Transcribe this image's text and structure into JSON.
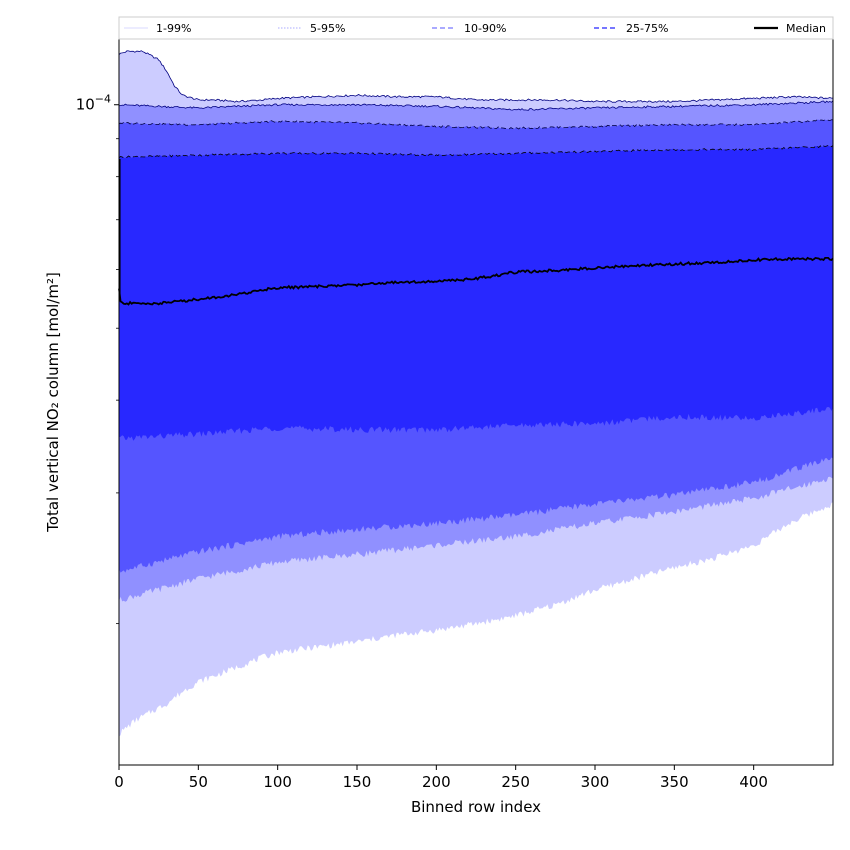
{
  "chart_data": {
    "type": "area",
    "xlabel": "Binned row index",
    "ylabel": "Total vertical NO₂ column [mol/m²]",
    "xlim": [
      0,
      450
    ],
    "xticks": [
      0,
      50,
      100,
      150,
      200,
      250,
      300,
      350,
      400
    ],
    "yscale": "log",
    "ylim": [
      1.29e-05,
      0.000123
    ],
    "ytick_label": "10−4",
    "ytick_value": 0.0001,
    "legend_position": "top, above plot, single row",
    "legend": [
      "1-99%",
      "5-95%",
      "10-90%",
      "25-75%",
      "Median"
    ],
    "bands": [
      {
        "name": "1-99%",
        "color": "#ccccff",
        "line_color": "#000080",
        "x": [
          0,
          5,
          10,
          15,
          20,
          25,
          30,
          35,
          40,
          50,
          60,
          75,
          90,
          100,
          125,
          150,
          175,
          200,
          225,
          250,
          275,
          300,
          325,
          350,
          375,
          400,
          425,
          450
        ],
        "upper": [
          0.000117,
          0.000118,
          0.000118,
          0.000118,
          0.0001165,
          0.000115,
          0.000111,
          0.000106,
          0.000103,
          0.0001015,
          0.0001015,
          0.000101,
          0.0001015,
          0.000102,
          0.0001025,
          0.000103,
          0.0001025,
          0.0001025,
          0.0001015,
          0.0001015,
          0.0001015,
          0.000101,
          0.000101,
          0.000101,
          0.0001015,
          0.000102,
          0.0001025,
          0.000102
        ],
        "lower": [
          1.42e-05,
          1.45e-05,
          1.48e-05,
          1.5e-05,
          1.52e-05,
          1.54e-05,
          1.56e-05,
          1.59e-05,
          1.62e-05,
          1.67e-05,
          1.7e-05,
          1.75e-05,
          1.8e-05,
          1.83e-05,
          1.86e-05,
          1.89e-05,
          1.93e-05,
          1.96e-05,
          2e-05,
          2.05e-05,
          2.12e-05,
          2.22e-05,
          2.3e-05,
          2.38e-05,
          2.45e-05,
          2.55e-05,
          2.75e-05,
          2.9e-05
        ]
      },
      {
        "name": "5-95%",
        "color": "#9090ff",
        "line_color": "#000080",
        "x": [
          0,
          50,
          100,
          150,
          200,
          250,
          300,
          350,
          400,
          450
        ],
        "upper": [
          0.0001,
          9.9e-05,
          0.0001,
          0.0001,
          9.95e-05,
          9.85e-05,
          9.9e-05,
          9.95e-05,
          0.0001,
          0.000101
        ],
        "lower": [
          2.15e-05,
          2.3e-05,
          2.42e-05,
          2.48e-05,
          2.55e-05,
          2.62e-05,
          2.73e-05,
          2.83e-05,
          2.95e-05,
          3.15e-05
        ]
      },
      {
        "name": "10-90%",
        "color": "#5555ff",
        "line_color": "#000040",
        "x": [
          0,
          50,
          100,
          150,
          200,
          250,
          300,
          350,
          400,
          450
        ],
        "upper": [
          9.45e-05,
          9.4e-05,
          9.5e-05,
          9.45e-05,
          9.35e-05,
          9.3e-05,
          9.35e-05,
          9.4e-05,
          9.4e-05,
          9.55e-05
        ],
        "lower": [
          2.35e-05,
          2.5e-05,
          2.62e-05,
          2.68e-05,
          2.73e-05,
          2.8e-05,
          2.9e-05,
          2.98e-05,
          3.1e-05,
          3.35e-05
        ]
      },
      {
        "name": "25-75%",
        "color": "#2828ff",
        "line_color": "#000000",
        "x": [
          0,
          50,
          100,
          150,
          200,
          250,
          300,
          350,
          400,
          450
        ],
        "upper": [
          8.5e-05,
          8.55e-05,
          8.6e-05,
          8.6e-05,
          8.55e-05,
          8.6e-05,
          8.65e-05,
          8.7e-05,
          8.7e-05,
          8.8e-05
        ],
        "lower": [
          3.55e-05,
          3.6e-05,
          3.67e-05,
          3.65e-05,
          3.65e-05,
          3.7e-05,
          3.72e-05,
          3.8e-05,
          3.78e-05,
          3.9e-05
        ]
      }
    ],
    "median": {
      "name": "Median",
      "color": "#000000",
      "x": [
        0,
        1,
        2,
        25,
        50,
        75,
        90,
        100,
        125,
        150,
        175,
        200,
        225,
        250,
        275,
        300,
        325,
        350,
        375,
        400,
        425,
        450
      ],
      "y": [
        5.65e-05,
        5.43e-05,
        5.4e-05,
        5.4e-05,
        5.47e-05,
        5.55e-05,
        5.63e-05,
        5.67e-05,
        5.69e-05,
        5.72e-05,
        5.77e-05,
        5.78e-05,
        5.83e-05,
        5.95e-05,
        5.98e-05,
        6.03e-05,
        6.07e-05,
        6.1e-05,
        6.13e-05,
        6.18e-05,
        6.2e-05,
        6.2e-05
      ]
    }
  }
}
